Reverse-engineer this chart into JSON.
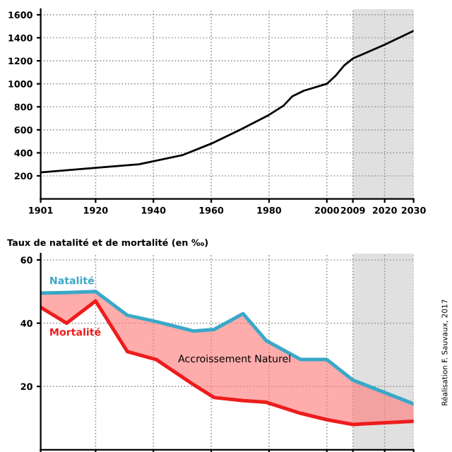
{
  "chart_data": [
    {
      "type": "line",
      "x": [
        1901,
        1920,
        1935,
        1950,
        1960,
        1970,
        1980,
        1985,
        1988,
        1992,
        2000,
        2003,
        2006,
        2009,
        2020,
        2030
      ],
      "series": [
        {
          "color": "#000000",
          "values": [
            230,
            270,
            300,
            380,
            480,
            600,
            730,
            810,
            890,
            940,
            1000,
            1070,
            1160,
            1220,
            1340,
            1460
          ]
        }
      ],
      "xlim": [
        1901,
        2030
      ],
      "xticks": [
        1901,
        1920,
        1940,
        1960,
        1980,
        2000,
        2009,
        2020,
        2030
      ],
      "ylim": [
        0,
        1650
      ],
      "yticks": [
        200,
        400,
        600,
        800,
        1000,
        1200,
        1400,
        1600
      ],
      "grid": true,
      "line_style": "solid",
      "marker": "none",
      "bands": [
        {
          "axis": "x",
          "from": 2009,
          "to": 2030,
          "color": "#e0e0e0"
        }
      ]
    },
    {
      "type": "line",
      "x": [
        1901,
        1910,
        1920,
        1931,
        1941,
        1954,
        1961,
        1971,
        1979,
        1991,
        2000,
        2009,
        2030
      ],
      "series": [
        {
          "name": "Natalité",
          "color": "#3aa8c8",
          "values": [
            49.5,
            49.7,
            50,
            42.5,
            40.5,
            37.5,
            38,
            43,
            34.5,
            28.5,
            28.5,
            22,
            14.5
          ],
          "lower": [
            45,
            40,
            47,
            31,
            28.5,
            20.5,
            16.5,
            15.5,
            15,
            11.5,
            9.5,
            8,
            9
          ],
          "upper": [
            49.5,
            49.7,
            50,
            42.5,
            40.5,
            37.5,
            38,
            43,
            34.5,
            28.5,
            28.5,
            22,
            14.5
          ]
        },
        {
          "name": "Mortalité",
          "type": "line",
          "color": "#ee1c1c",
          "values": [
            45,
            40,
            47,
            31,
            28.5,
            20.5,
            16.5,
            15.5,
            15,
            11.5,
            9.5,
            8,
            9
          ]
        }
      ],
      "xlim": [
        1901,
        2030
      ],
      "xticks": [
        1901,
        1920,
        1940,
        1960,
        1980,
        2000,
        2009,
        2020,
        2030
      ],
      "ylim": [
        0,
        62
      ],
      "yticks": [
        20,
        40,
        60
      ],
      "tick_labels": "y",
      "ylabel": "Taux de natalité et de mortalité (en ‰)",
      "grid": true,
      "line_style": "solid",
      "marker": "none",
      "bands": [
        {
          "axis": "x",
          "from": 2009,
          "to": 2030,
          "color": "#e0e0e0"
        }
      ],
      "annotations": [
        "Accroissement Naturel",
        "Réalisation F. Sauvaux, 2017"
      ]
    }
  ]
}
